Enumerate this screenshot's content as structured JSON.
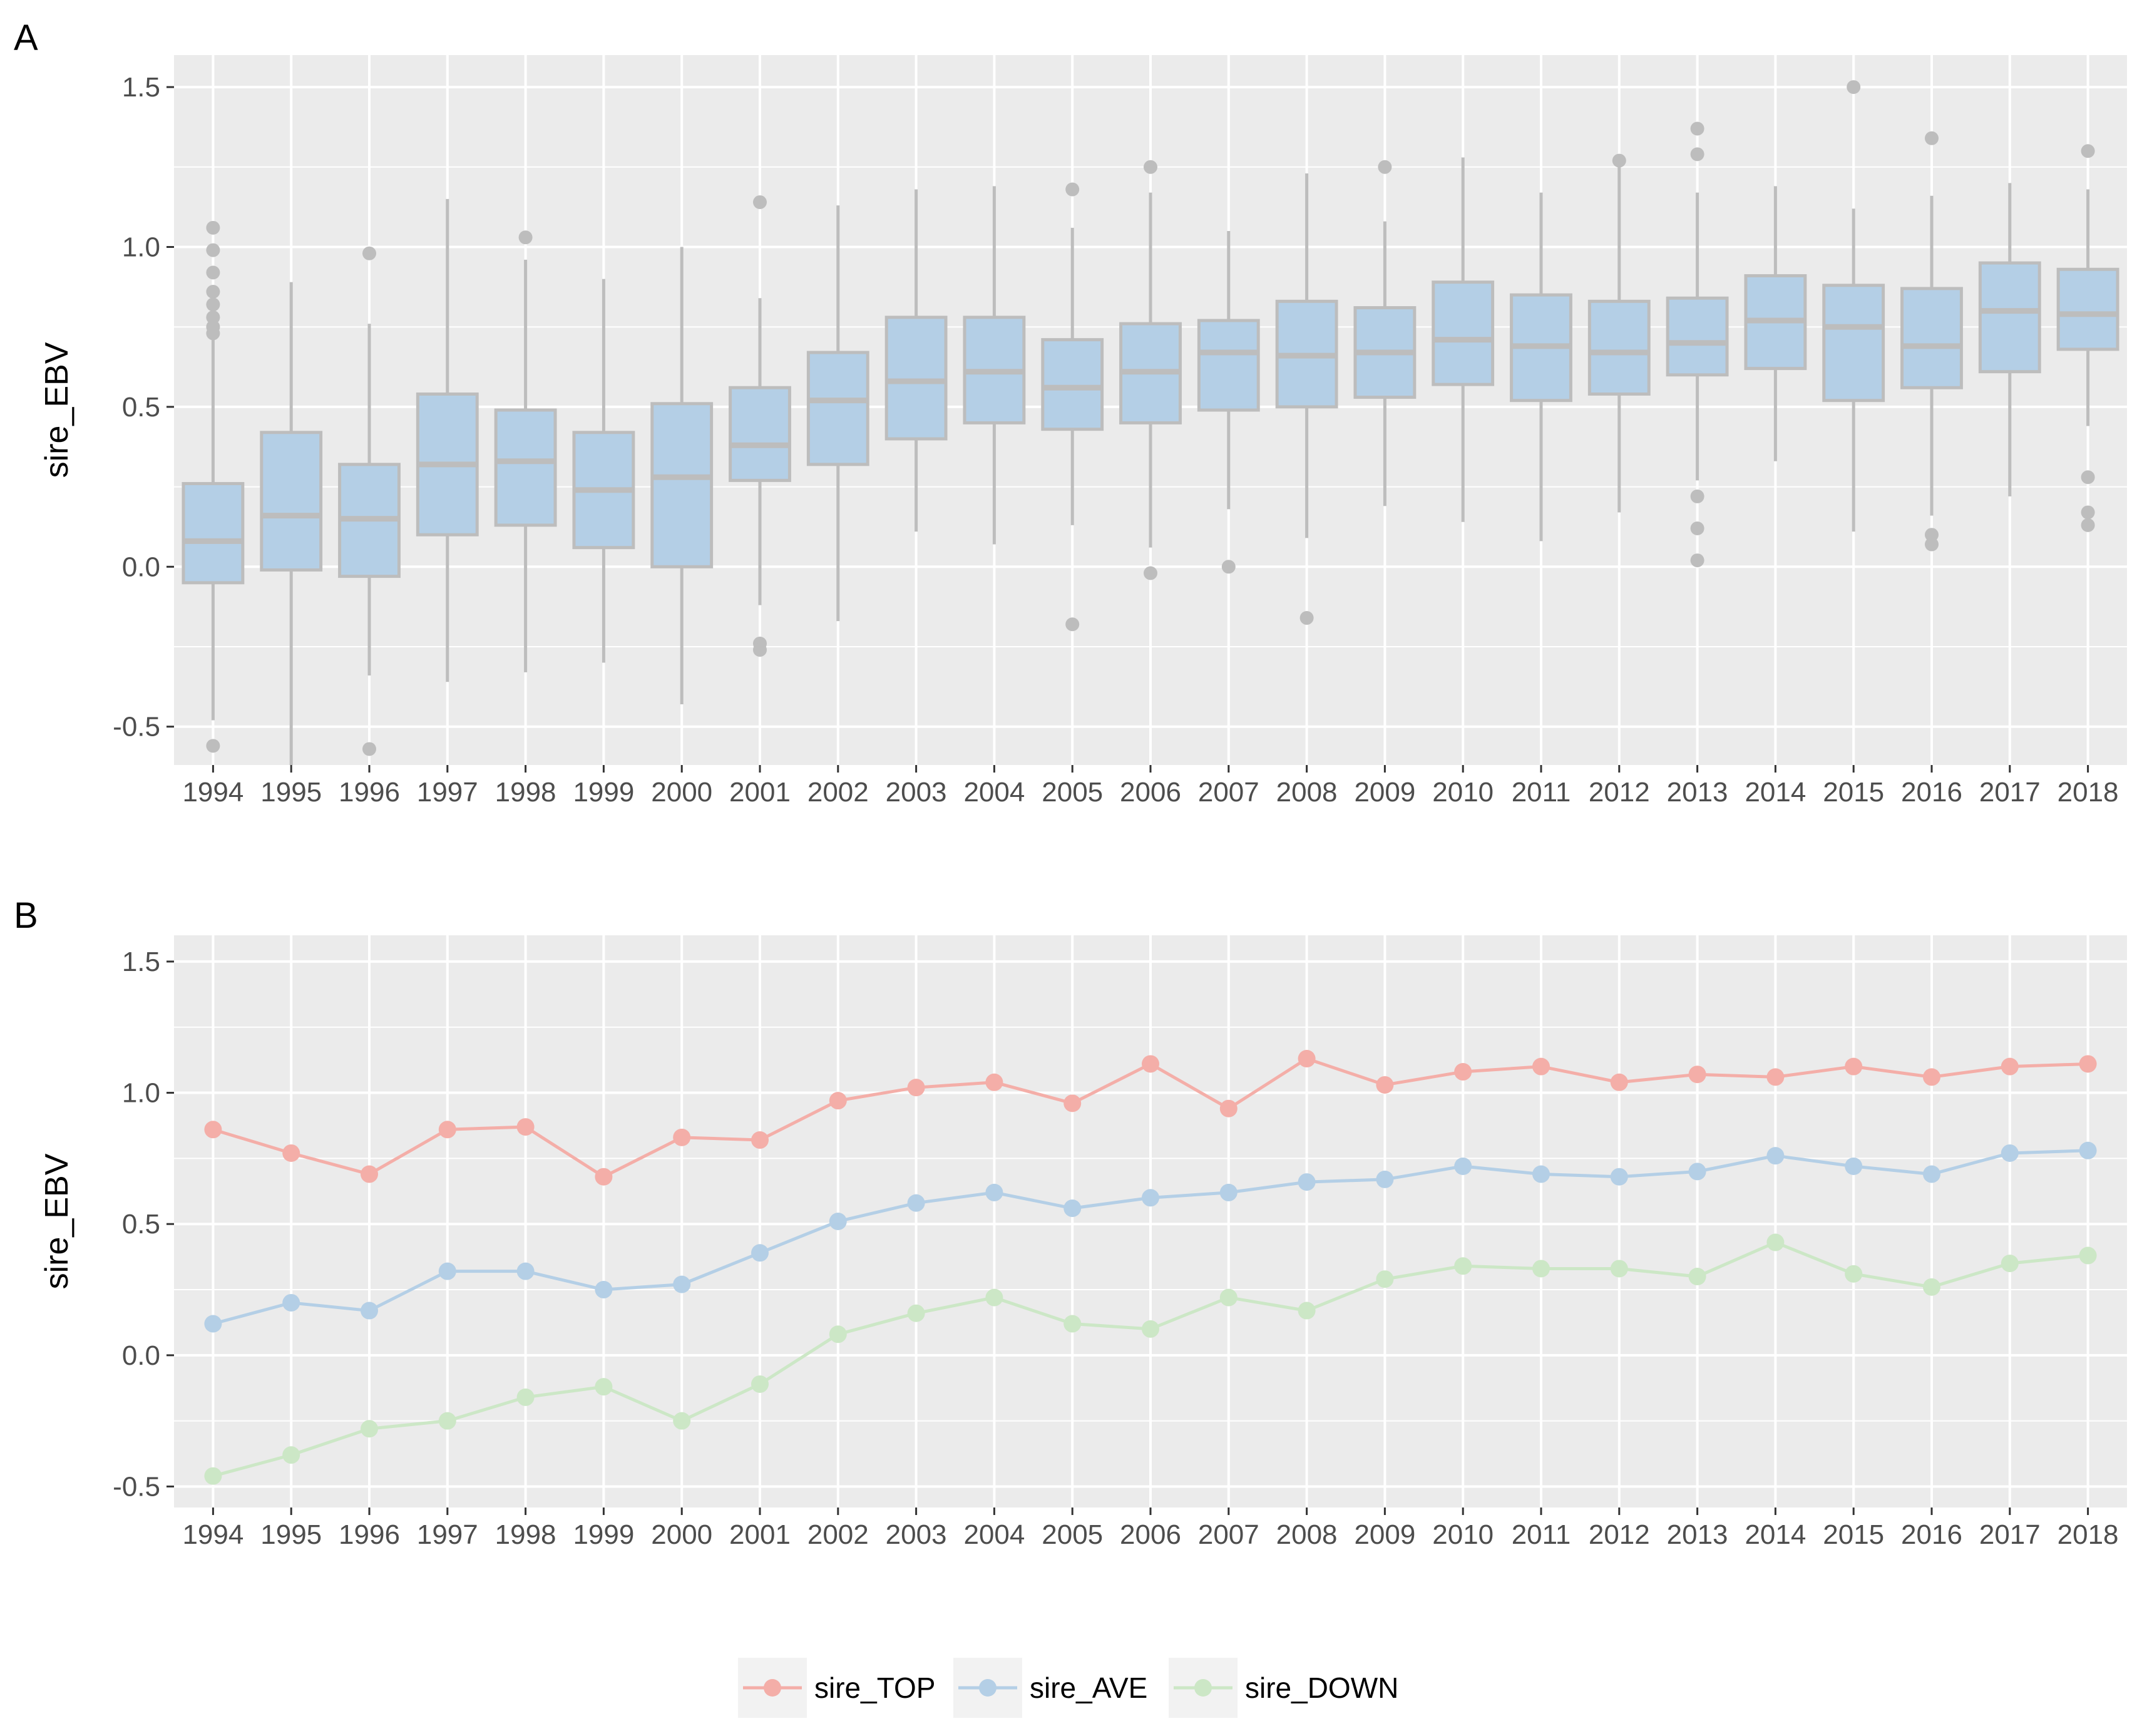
{
  "chart_data": [
    {
      "panel": "A",
      "type": "box",
      "ylabel": "sire_EBV",
      "ylim": [
        -0.62,
        1.6
      ],
      "yticks": [
        -0.5,
        0.0,
        0.5,
        1.0,
        1.5
      ],
      "ytick_labels": [
        "-0.5",
        "0.0",
        "0.5",
        "1.0",
        "1.5"
      ],
      "grid": true,
      "categories": [
        "1994",
        "1995",
        "1996",
        "1997",
        "1998",
        "1999",
        "2000",
        "2001",
        "2002",
        "2003",
        "2004",
        "2005",
        "2006",
        "2007",
        "2008",
        "2009",
        "2010",
        "2011",
        "2012",
        "2013",
        "2014",
        "2015",
        "2016",
        "2017",
        "2018"
      ],
      "colors": {
        "fill": "#b4cfe6",
        "stroke": "#bdbdbd",
        "outlier": "#bdbdbd",
        "panel_bg": "#ebebeb",
        "grid": "#ffffff"
      },
      "boxes": [
        {
          "min": -0.48,
          "q1": -0.05,
          "median": 0.08,
          "q3": 0.26,
          "max": 0.72,
          "outliers": [
            1.06,
            0.99,
            0.92,
            0.86,
            0.82,
            0.78,
            0.75,
            0.73,
            -0.56
          ]
        },
        {
          "min": -0.62,
          "q1": -0.01,
          "median": 0.16,
          "q3": 0.42,
          "max": 0.89,
          "outliers": []
        },
        {
          "min": -0.34,
          "q1": -0.03,
          "median": 0.15,
          "q3": 0.32,
          "max": 0.76,
          "outliers": [
            0.98,
            -0.57
          ]
        },
        {
          "min": -0.36,
          "q1": 0.1,
          "median": 0.32,
          "q3": 0.54,
          "max": 1.15,
          "outliers": []
        },
        {
          "min": -0.33,
          "q1": 0.13,
          "median": 0.33,
          "q3": 0.49,
          "max": 0.96,
          "outliers": [
            1.03
          ]
        },
        {
          "min": -0.3,
          "q1": 0.06,
          "median": 0.24,
          "q3": 0.42,
          "max": 0.9,
          "outliers": []
        },
        {
          "min": -0.43,
          "q1": 0.0,
          "median": 0.28,
          "q3": 0.51,
          "max": 1.0,
          "outliers": []
        },
        {
          "min": -0.12,
          "q1": 0.27,
          "median": 0.38,
          "q3": 0.56,
          "max": 0.84,
          "outliers": [
            1.14,
            -0.24,
            -0.26
          ]
        },
        {
          "min": -0.17,
          "q1": 0.32,
          "median": 0.52,
          "q3": 0.67,
          "max": 1.13,
          "outliers": []
        },
        {
          "min": 0.11,
          "q1": 0.4,
          "median": 0.58,
          "q3": 0.78,
          "max": 1.18,
          "outliers": []
        },
        {
          "min": 0.07,
          "q1": 0.45,
          "median": 0.61,
          "q3": 0.78,
          "max": 1.19,
          "outliers": []
        },
        {
          "min": 0.13,
          "q1": 0.43,
          "median": 0.56,
          "q3": 0.71,
          "max": 1.06,
          "outliers": [
            1.18,
            -0.18
          ]
        },
        {
          "min": 0.06,
          "q1": 0.45,
          "median": 0.61,
          "q3": 0.76,
          "max": 1.17,
          "outliers": [
            1.25,
            -0.02
          ]
        },
        {
          "min": 0.18,
          "q1": 0.49,
          "median": 0.67,
          "q3": 0.77,
          "max": 1.05,
          "outliers": [
            0.0
          ]
        },
        {
          "min": 0.09,
          "q1": 0.5,
          "median": 0.66,
          "q3": 0.83,
          "max": 1.23,
          "outliers": [
            -0.16
          ]
        },
        {
          "min": 0.19,
          "q1": 0.53,
          "median": 0.67,
          "q3": 0.81,
          "max": 1.08,
          "outliers": [
            1.25
          ]
        },
        {
          "min": 0.14,
          "q1": 0.57,
          "median": 0.71,
          "q3": 0.89,
          "max": 1.28,
          "outliers": []
        },
        {
          "min": 0.08,
          "q1": 0.52,
          "median": 0.69,
          "q3": 0.85,
          "max": 1.17,
          "outliers": []
        },
        {
          "min": 0.17,
          "q1": 0.54,
          "median": 0.67,
          "q3": 0.83,
          "max": 1.25,
          "outliers": [
            1.27
          ]
        },
        {
          "min": 0.27,
          "q1": 0.6,
          "median": 0.7,
          "q3": 0.84,
          "max": 1.17,
          "outliers": [
            1.37,
            1.29,
            0.22,
            0.12,
            0.02
          ]
        },
        {
          "min": 0.33,
          "q1": 0.62,
          "median": 0.77,
          "q3": 0.91,
          "max": 1.19,
          "outliers": []
        },
        {
          "min": 0.11,
          "q1": 0.52,
          "median": 0.75,
          "q3": 0.88,
          "max": 1.12,
          "outliers": [
            1.5
          ]
        },
        {
          "min": 0.16,
          "q1": 0.56,
          "median": 0.69,
          "q3": 0.87,
          "max": 1.16,
          "outliers": [
            1.34,
            0.1,
            0.07
          ]
        },
        {
          "min": 0.22,
          "q1": 0.61,
          "median": 0.8,
          "q3": 0.95,
          "max": 1.2,
          "outliers": []
        },
        {
          "min": 0.44,
          "q1": 0.68,
          "median": 0.79,
          "q3": 0.93,
          "max": 1.18,
          "outliers": [
            1.3,
            0.28,
            0.17,
            0.13
          ]
        }
      ]
    },
    {
      "panel": "B",
      "type": "line",
      "ylabel": "sire_EBV",
      "ylim": [
        -0.58,
        1.6
      ],
      "yticks": [
        -0.5,
        0.0,
        0.5,
        1.0,
        1.5
      ],
      "ytick_labels": [
        "-0.5",
        "0.0",
        "0.5",
        "1.0",
        "1.5"
      ],
      "grid": true,
      "legend_position": "bottom",
      "categories": [
        "1994",
        "1995",
        "1996",
        "1997",
        "1998",
        "1999",
        "2000",
        "2001",
        "2002",
        "2003",
        "2004",
        "2005",
        "2006",
        "2007",
        "2008",
        "2009",
        "2010",
        "2011",
        "2012",
        "2013",
        "2014",
        "2015",
        "2016",
        "2017",
        "2018"
      ],
      "colors": {
        "panel_bg": "#ebebeb",
        "grid": "#ffffff"
      },
      "series": [
        {
          "name": "sire_TOP",
          "color": "#f4aea8",
          "values": [
            0.86,
            0.77,
            0.69,
            0.86,
            0.87,
            0.68,
            0.83,
            0.82,
            0.97,
            1.02,
            1.04,
            0.96,
            1.11,
            0.94,
            1.13,
            1.03,
            1.08,
            1.1,
            1.04,
            1.07,
            1.06,
            1.1,
            1.06,
            1.1,
            1.11
          ]
        },
        {
          "name": "sire_AVE",
          "color": "#b4cfe6",
          "values": [
            0.12,
            0.2,
            0.17,
            0.32,
            0.32,
            0.25,
            0.27,
            0.39,
            0.51,
            0.58,
            0.62,
            0.56,
            0.6,
            0.62,
            0.66,
            0.67,
            0.72,
            0.69,
            0.68,
            0.7,
            0.76,
            0.72,
            0.69,
            0.77,
            0.78
          ]
        },
        {
          "name": "sire_DOWN",
          "color": "#cce7c6",
          "values": [
            -0.46,
            -0.38,
            -0.28,
            -0.25,
            -0.16,
            -0.12,
            -0.25,
            -0.11,
            0.08,
            0.16,
            0.22,
            0.12,
            0.1,
            0.22,
            0.17,
            0.29,
            0.34,
            0.33,
            0.33,
            0.3,
            0.43,
            0.31,
            0.26,
            0.35,
            0.38
          ]
        }
      ]
    }
  ],
  "panels": {
    "a_label": "A",
    "b_label": "B"
  }
}
